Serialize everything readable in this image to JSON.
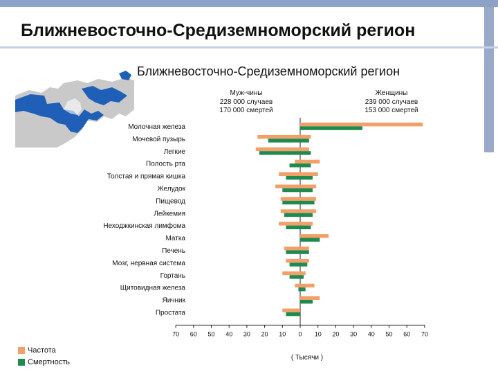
{
  "slide": {
    "title": "Ближневосточно-Средиземноморский регион"
  },
  "chart_data": {
    "type": "bar",
    "title": "Ближневосточно-Средиземноморский регион",
    "xlabel": "( Тысячи )",
    "xlim": [
      -70,
      70
    ],
    "x_ticks": [
      "70",
      "60",
      "50",
      "40",
      "30",
      "20",
      "10",
      "0",
      "10",
      "20",
      "30",
      "40",
      "50",
      "60",
      "70"
    ],
    "colors": {
      "incidence": "#f0a068",
      "mortality": "#1e8a4f"
    },
    "legend": [
      {
        "key": "incidence",
        "label": "Частота"
      },
      {
        "key": "mortality",
        "label": "Смертность"
      }
    ],
    "groups": [
      {
        "key": "male",
        "title": "Муж-чины",
        "cases": "228 000 случаев",
        "deaths": "170 000 смертей"
      },
      {
        "key": "female",
        "title": "Женщины",
        "cases": "239 000 случаев",
        "deaths": "153 000 смертей"
      }
    ],
    "categories": [
      "Молочная железа",
      "Мочевой пузырь",
      "Легкие",
      "Полость рта",
      "Толстая и прямая кишка",
      "Желудок",
      "Пищевод",
      "Лейкемия",
      "Неходжкинская лимфома",
      "Матка",
      "Печень",
      "Мозг, нервная система",
      "Гортань",
      "Щитовидная железа",
      "Яичник",
      "Простата"
    ],
    "series": [
      {
        "name": "Мужчины — частота",
        "values": [
          0,
          24,
          25,
          3,
          12,
          14,
          11,
          11,
          12,
          0,
          9,
          8,
          10,
          3,
          0,
          10
        ]
      },
      {
        "name": "Мужчины — смертность",
        "values": [
          0,
          18,
          23,
          6,
          8,
          10,
          10,
          9,
          8,
          0,
          8,
          6,
          6,
          1,
          0,
          8
        ]
      },
      {
        "name": "Женщины — частота",
        "values": [
          69,
          6,
          5,
          11,
          10,
          9,
          9,
          9,
          7,
          16,
          5,
          5,
          3,
          8,
          11,
          0
        ]
      },
      {
        "name": "Женщины — смертность",
        "values": [
          35,
          5,
          6,
          6,
          7,
          7,
          8,
          7,
          6,
          11,
          5,
          4,
          2,
          3,
          7,
          0
        ]
      }
    ]
  }
}
